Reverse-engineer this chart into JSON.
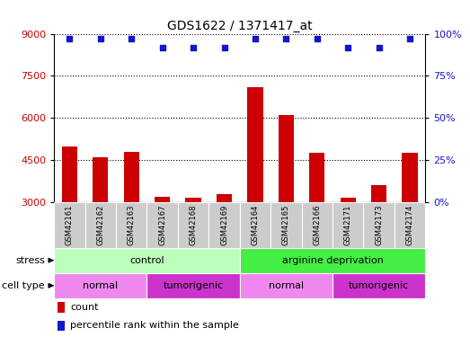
{
  "title": "GDS1622 / 1371417_at",
  "samples": [
    "GSM42161",
    "GSM42162",
    "GSM42163",
    "GSM42167",
    "GSM42168",
    "GSM42169",
    "GSM42164",
    "GSM42165",
    "GSM42166",
    "GSM42171",
    "GSM42173",
    "GSM42174"
  ],
  "counts": [
    5000,
    4600,
    4800,
    3200,
    3150,
    3300,
    7100,
    6100,
    4750,
    3150,
    3600,
    4750
  ],
  "percentile_ranks": [
    97,
    97,
    97,
    92,
    92,
    92,
    97,
    97,
    97,
    92,
    92,
    97
  ],
  "baseline": 3000,
  "ylim": [
    3000,
    9000
  ],
  "yticks": [
    3000,
    4500,
    6000,
    7500,
    9000
  ],
  "right_yticks": [
    0,
    25,
    50,
    75,
    100
  ],
  "right_ylim": [
    0,
    100
  ],
  "bar_color": "#cc0000",
  "dot_color": "#1515cc",
  "stress_control_color": "#bbffbb",
  "stress_arginine_color": "#44ee44",
  "cell_normal_color": "#ee88ee",
  "cell_tumorigenic_color": "#cc33cc",
  "sample_bg_color": "#cccccc",
  "stress_groups": [
    {
      "label": "control",
      "start": 0,
      "end": 6,
      "color": "#bbffbb"
    },
    {
      "label": "arginine deprivation",
      "start": 6,
      "end": 12,
      "color": "#44ee44"
    }
  ],
  "cell_groups": [
    {
      "label": "normal",
      "start": 0,
      "end": 3,
      "color": "#ee88ee"
    },
    {
      "label": "tumorigenic",
      "start": 3,
      "end": 6,
      "color": "#cc33cc"
    },
    {
      "label": "normal",
      "start": 6,
      "end": 9,
      "color": "#ee88ee"
    },
    {
      "label": "tumorigenic",
      "start": 9,
      "end": 12,
      "color": "#cc33cc"
    }
  ]
}
